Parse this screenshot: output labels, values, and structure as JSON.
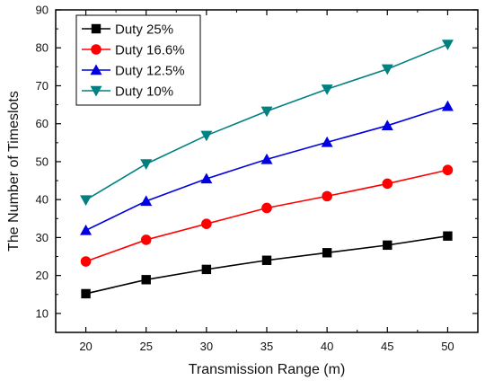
{
  "chart_data": {
    "type": "line",
    "title": "",
    "xlabel": "Transmission Range (m)",
    "ylabel": "The Number of Timeslots",
    "x": [
      20,
      25,
      30,
      35,
      40,
      45,
      50
    ],
    "xlim": [
      17.5,
      52.5
    ],
    "ylim": [
      5,
      90
    ],
    "x_ticks": [
      20,
      25,
      30,
      35,
      40,
      45,
      50
    ],
    "y_ticks": [
      10,
      20,
      30,
      40,
      50,
      60,
      70,
      80,
      90
    ],
    "grid": false,
    "legend_position": "top-left",
    "series": [
      {
        "name": "Duty 25%",
        "color": "#000000",
        "marker": "square",
        "values": [
          15.2,
          18.9,
          21.6,
          24.0,
          26.0,
          28.0,
          30.4
        ]
      },
      {
        "name": "Duty 16.6%",
        "color": "#ff0000",
        "marker": "circle",
        "values": [
          23.7,
          29.4,
          33.6,
          37.8,
          40.9,
          44.2,
          47.8
        ]
      },
      {
        "name": "Duty 12.5%",
        "color": "#0000e0",
        "marker": "triangle-up",
        "values": [
          31.9,
          39.6,
          45.5,
          50.6,
          55.1,
          59.5,
          64.6
        ]
      },
      {
        "name": "Duty 10%",
        "color": "#008080",
        "marker": "triangle-down",
        "values": [
          39.9,
          49.4,
          56.9,
          63.3,
          69.1,
          74.4,
          80.9
        ]
      }
    ]
  }
}
